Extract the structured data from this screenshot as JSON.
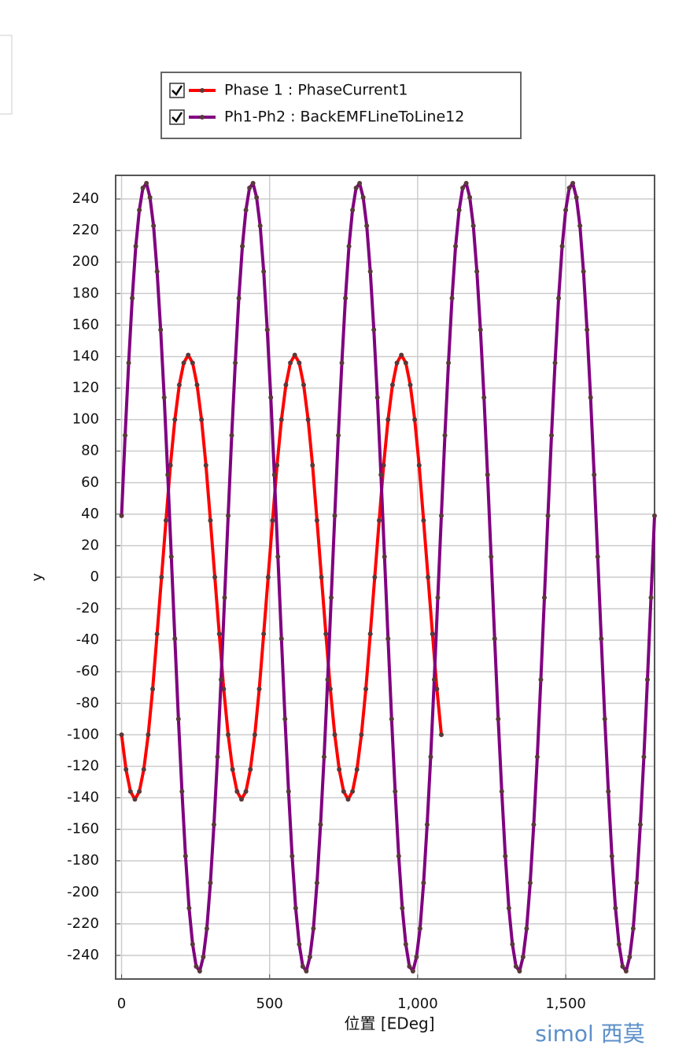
{
  "chart_data": {
    "type": "line",
    "legend": "top",
    "grid": true,
    "ylabel": "y",
    "xlabel": "位置 [EDeg]",
    "watermark": "simol 西莫",
    "xlim": [
      -20,
      1800
    ],
    "ylim": [
      -255,
      255
    ],
    "xticks": [
      0,
      500,
      {
        "value": 1000,
        "label": "1,000"
      },
      {
        "value": 1500,
        "label": "1,500"
      }
    ],
    "yticks": [
      -240,
      -220,
      -200,
      -180,
      -160,
      -140,
      -120,
      -100,
      -80,
      -60,
      -40,
      -20,
      0,
      20,
      40,
      60,
      80,
      100,
      120,
      140,
      160,
      180,
      200,
      220,
      240
    ],
    "series": [
      {
        "name": "Phase 1 : PhaseCurrent1",
        "color": "#ff0000",
        "x": [
          0,
          15,
          30,
          45,
          60,
          75,
          90,
          105,
          120,
          135,
          150,
          165,
          180,
          195,
          210,
          225,
          240,
          255,
          270,
          285,
          300,
          315,
          330,
          345,
          360,
          375,
          390,
          405,
          420,
          435,
          450,
          465,
          480,
          495,
          510,
          525,
          540,
          555,
          570,
          585,
          600,
          615,
          630,
          645,
          660,
          675,
          690,
          705,
          720,
          735,
          750,
          765,
          780,
          795,
          810,
          825,
          840,
          855,
          870,
          885,
          900,
          915,
          930,
          945,
          960,
          975,
          990,
          1005,
          1020,
          1035,
          1050,
          1065,
          1080
        ],
        "values": [
          -100,
          -122,
          -136,
          -141,
          -136,
          -122,
          -100,
          -71,
          -36,
          0,
          36,
          71,
          100,
          122,
          136,
          141,
          136,
          122,
          100,
          71,
          36,
          0,
          -36,
          -71,
          -100,
          -122,
          -136,
          -141,
          -136,
          -122,
          -100,
          -71,
          -36,
          0,
          36,
          71,
          100,
          122,
          136,
          141,
          136,
          122,
          100,
          71,
          36,
          0,
          -36,
          -71,
          -100,
          -122,
          -136,
          -141,
          -136,
          -122,
          -100,
          -71,
          -36,
          0,
          36,
          71,
          100,
          122,
          136,
          141,
          136,
          122,
          100,
          71,
          36,
          0,
          -36,
          -71,
          -100
        ]
      },
      {
        "name": "Ph1-Ph2 : BackEMFLineToLine12",
        "color": "#800080",
        "x": [
          0,
          12,
          24,
          36,
          48,
          60,
          72,
          84,
          96,
          108,
          120,
          132,
          144,
          156,
          168,
          180,
          192,
          204,
          216,
          228,
          240,
          252,
          264,
          276,
          288,
          300,
          312,
          324,
          336,
          348,
          360,
          372,
          384,
          396,
          408,
          420,
          432,
          444,
          456,
          468,
          480,
          492,
          504,
          516,
          528,
          540,
          552,
          564,
          576,
          588,
          600,
          612,
          624,
          636,
          648,
          660,
          672,
          684,
          696,
          708,
          720,
          732,
          744,
          756,
          768,
          780,
          792,
          804,
          816,
          828,
          840,
          852,
          864,
          876,
          888,
          900,
          912,
          924,
          936,
          948,
          960,
          972,
          984,
          996,
          1008,
          1020,
          1032,
          1044,
          1056,
          1068,
          1080,
          1092,
          1104,
          1116,
          1128,
          1140,
          1152,
          1164,
          1176,
          1188,
          1200,
          1212,
          1224,
          1236,
          1248,
          1260,
          1272,
          1284,
          1296,
          1308,
          1320,
          1332,
          1344,
          1356,
          1368,
          1380,
          1392,
          1404,
          1416,
          1428,
          1440,
          1452,
          1464,
          1476,
          1488,
          1500,
          1512,
          1524,
          1536,
          1548,
          1560,
          1572,
          1584,
          1596,
          1608,
          1620,
          1632,
          1644,
          1656,
          1668,
          1680,
          1692,
          1704,
          1716,
          1728,
          1740,
          1752,
          1764,
          1776,
          1788,
          1800
        ],
        "values": [
          39,
          90,
          136,
          177,
          210,
          233,
          247,
          250,
          241,
          223,
          194,
          157,
          114,
          65,
          13,
          -39,
          -90,
          -136,
          -177,
          -210,
          -233,
          -247,
          -250,
          -241,
          -223,
          -194,
          -157,
          -114,
          -65,
          -13,
          39,
          90,
          136,
          177,
          210,
          233,
          247,
          250,
          241,
          223,
          194,
          157,
          114,
          65,
          13,
          -39,
          -90,
          -136,
          -177,
          -210,
          -233,
          -247,
          -250,
          -241,
          -223,
          -194,
          -157,
          -114,
          -65,
          -13,
          39,
          90,
          136,
          177,
          210,
          233,
          247,
          250,
          241,
          223,
          194,
          157,
          114,
          65,
          13,
          -39,
          -90,
          -136,
          -177,
          -210,
          -233,
          -247,
          -250,
          -241,
          -223,
          -194,
          -157,
          -114,
          -65,
          -13,
          39,
          90,
          136,
          177,
          210,
          233,
          247,
          250,
          241,
          223,
          194,
          157,
          114,
          65,
          13,
          -39,
          -90,
          -136,
          -177,
          -210,
          -233,
          -247,
          -250,
          -241,
          -223,
          -194,
          -157,
          -114,
          -65,
          -13,
          39,
          90,
          136,
          177,
          210,
          233,
          247,
          250,
          241,
          223,
          194,
          157,
          114,
          65,
          13,
          -39,
          -90,
          -136,
          -177,
          -210,
          -233,
          -247,
          -250,
          -241,
          -223,
          -194,
          -157,
          -114,
          -65,
          -13,
          39
        ]
      }
    ]
  }
}
